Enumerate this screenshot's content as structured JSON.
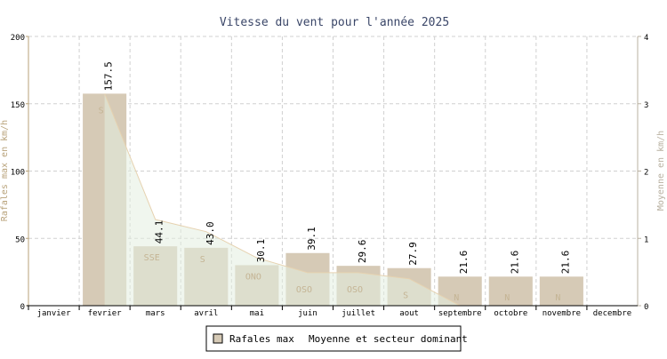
{
  "chart_data": {
    "type": "bar",
    "title": "Vitesse du vent pour l'année 2025",
    "ylabel": "Rafales max en km/h",
    "y2label": "Moyenne en km/h",
    "ylim": [
      0,
      200
    ],
    "y2lim": [
      0,
      4
    ],
    "yticks": [
      0,
      50,
      100,
      150,
      200
    ],
    "y2ticks": [
      0,
      1,
      2,
      3,
      4
    ],
    "grid": true,
    "legend_placement": "bottom",
    "categories": [
      "janvier",
      "fevrier",
      "mars",
      "avril",
      "mai",
      "juin",
      "juillet",
      "aout",
      "septembre",
      "octobre",
      "novembre",
      "decembre"
    ],
    "series": [
      {
        "name": "Rafales max",
        "type": "bar",
        "color": "#d6cab6",
        "values": [
          null,
          157.5,
          44.1,
          43.0,
          30.1,
          39.1,
          29.6,
          27.9,
          21.6,
          21.6,
          21.6,
          null
        ],
        "labels": [
          "",
          "157.5",
          "44.1",
          "43.0",
          "30.1",
          "39.1",
          "29.6",
          "27.9",
          "21.6",
          "21.6",
          "21.6",
          ""
        ]
      },
      {
        "name": "Moyenne et secteur dominant",
        "type": "area",
        "axis": "right",
        "color": "#e6d2b0",
        "fill": "#e4eee0",
        "values": [
          null,
          3.15,
          1.28,
          1.1,
          0.71,
          0.49,
          0.49,
          0.4,
          0,
          0,
          0,
          null
        ],
        "directions": [
          "",
          "S",
          "SSE",
          "S",
          "ONO",
          "OSO",
          "OSO",
          "S",
          "N",
          "N",
          "N",
          ""
        ]
      }
    ]
  }
}
